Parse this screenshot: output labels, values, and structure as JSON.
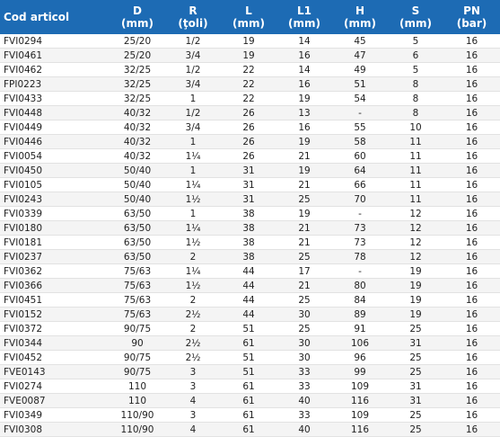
{
  "table": {
    "header": [
      {
        "symbol": "Cod articol"
      },
      {
        "symbol": "D",
        "unit": "(mm)"
      },
      {
        "symbol": "R",
        "unit": "(ţoli)"
      },
      {
        "symbol": "L",
        "unit": "(mm)"
      },
      {
        "symbol": "L1",
        "unit": "(mm)"
      },
      {
        "symbol": "H",
        "unit": "(mm)"
      },
      {
        "symbol": "S",
        "unit": "(mm)"
      },
      {
        "symbol": "PN",
        "unit": "(bar)"
      }
    ],
    "rows": [
      [
        "FVI0294",
        "25/20",
        "1/2",
        "19",
        "14",
        "45",
        "5",
        "16"
      ],
      [
        "FVI0461",
        "25/20",
        "3/4",
        "19",
        "16",
        "47",
        "6",
        "16"
      ],
      [
        "FVI0462",
        "32/25",
        "1/2",
        "22",
        "14",
        "49",
        "5",
        "16"
      ],
      [
        "FPI0223",
        "32/25",
        "3/4",
        "22",
        "16",
        "51",
        "8",
        "16"
      ],
      [
        "FVI0433",
        "32/25",
        "1",
        "22",
        "19",
        "54",
        "8",
        "16"
      ],
      [
        "FVI0448",
        "40/32",
        "1/2",
        "26",
        "13",
        "-",
        "8",
        "16"
      ],
      [
        "FVI0449",
        "40/32",
        "3/4",
        "26",
        "16",
        "55",
        "10",
        "16"
      ],
      [
        "FVI0446",
        "40/32",
        "1",
        "26",
        "19",
        "58",
        "11",
        "16"
      ],
      [
        "FVI0054",
        "40/32",
        "1¼",
        "26",
        "21",
        "60",
        "11",
        "16"
      ],
      [
        "FVI0450",
        "50/40",
        "1",
        "31",
        "19",
        "64",
        "11",
        "16"
      ],
      [
        "FVI0105",
        "50/40",
        "1¼",
        "31",
        "21",
        "66",
        "11",
        "16"
      ],
      [
        "FVI0243",
        "50/40",
        "1½",
        "31",
        "25",
        "70",
        "11",
        "16"
      ],
      [
        "FVI0339",
        "63/50",
        "1",
        "38",
        "19",
        "-",
        "12",
        "16"
      ],
      [
        "FVI0180",
        "63/50",
        "1¼",
        "38",
        "21",
        "73",
        "12",
        "16"
      ],
      [
        "FVI0181",
        "63/50",
        "1½",
        "38",
        "21",
        "73",
        "12",
        "16"
      ],
      [
        "FVI0237",
        "63/50",
        "2",
        "38",
        "25",
        "78",
        "12",
        "16"
      ],
      [
        "FVI0362",
        "75/63",
        "1¼",
        "44",
        "17",
        "-",
        "19",
        "16"
      ],
      [
        "FVI0366",
        "75/63",
        "1½",
        "44",
        "21",
        "80",
        "19",
        "16"
      ],
      [
        "FVI0451",
        "75/63",
        "2",
        "44",
        "25",
        "84",
        "19",
        "16"
      ],
      [
        "FVI0152",
        "75/63",
        "2½",
        "44",
        "30",
        "89",
        "19",
        "16"
      ],
      [
        "FVI0372",
        "90/75",
        "2",
        "51",
        "25",
        "91",
        "25",
        "16"
      ],
      [
        "FVI0344",
        "90",
        "2½",
        "61",
        "30",
        "106",
        "31",
        "16"
      ],
      [
        "FVI0452",
        "90/75",
        "2½",
        "51",
        "30",
        "96",
        "25",
        "16"
      ],
      [
        "FVE0143",
        "90/75",
        "3",
        "51",
        "33",
        "99",
        "25",
        "16"
      ],
      [
        "FVI0274",
        "110",
        "3",
        "61",
        "33",
        "109",
        "31",
        "16"
      ],
      [
        "FVE0087",
        "110",
        "4",
        "61",
        "40",
        "116",
        "31",
        "16"
      ],
      [
        "FVI0349",
        "110/90",
        "3",
        "61",
        "33",
        "109",
        "25",
        "16"
      ],
      [
        "FVI0308",
        "110/90",
        "4",
        "61",
        "40",
        "116",
        "25",
        "16"
      ]
    ]
  }
}
